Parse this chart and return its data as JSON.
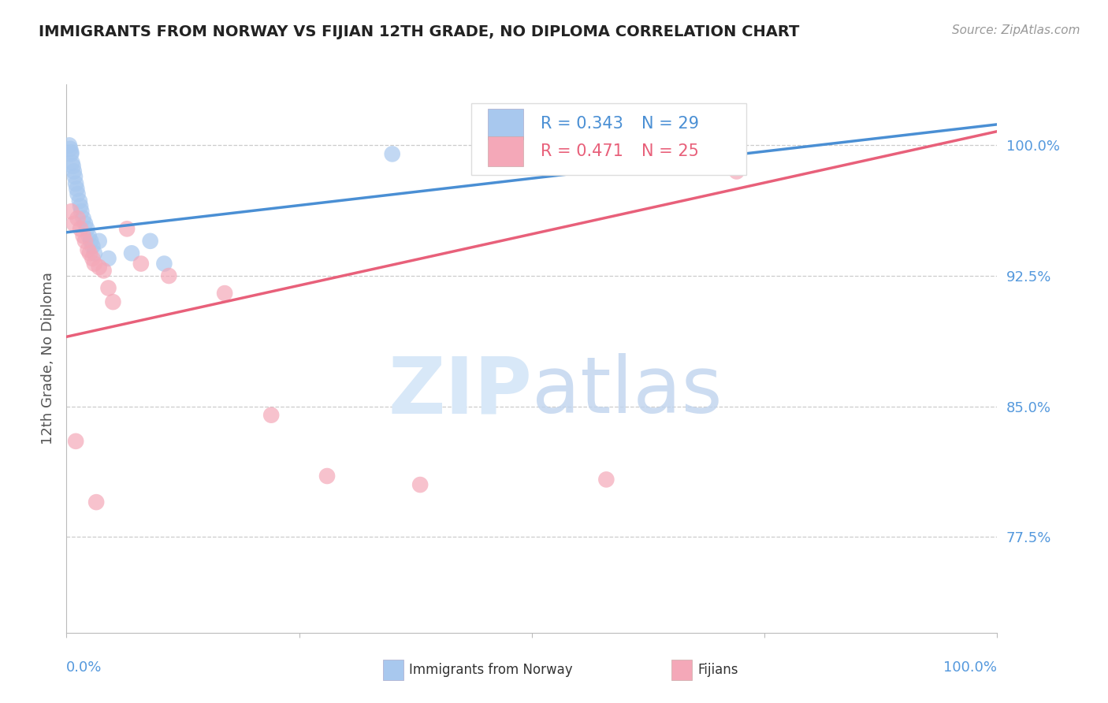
{
  "title": "IMMIGRANTS FROM NORWAY VS FIJIAN 12TH GRADE, NO DIPLOMA CORRELATION CHART",
  "source": "Source: ZipAtlas.com",
  "ylabel": "12th Grade, No Diploma",
  "yticks": [
    77.5,
    85.0,
    92.5,
    100.0
  ],
  "ytick_labels": [
    "77.5%",
    "85.0%",
    "92.5%",
    "100.0%"
  ],
  "xlim": [
    0.0,
    100.0
  ],
  "ylim": [
    72.0,
    103.5
  ],
  "blue_color": "#A8C8EE",
  "pink_color": "#F4A8B8",
  "blue_line_color": "#4A8FD4",
  "pink_line_color": "#E8607A",
  "legend_r_blue": "R = 0.343",
  "legend_n_blue": "N = 29",
  "legend_r_pink": "R = 0.471",
  "legend_n_pink": "N = 25",
  "legend_label_blue": "Immigrants from Norway",
  "legend_label_pink": "Fijians",
  "norway_x": [
    0.3,
    0.4,
    0.5,
    0.5,
    0.6,
    0.7,
    0.8,
    0.9,
    1.0,
    1.1,
    1.2,
    1.4,
    1.5,
    1.6,
    1.8,
    2.0,
    2.2,
    2.4,
    2.6,
    2.8,
    3.0,
    3.5,
    4.5,
    7.0,
    9.0,
    10.5,
    35.0,
    55.0,
    62.0
  ],
  "norway_y": [
    100.0,
    99.8,
    99.5,
    99.6,
    99.0,
    98.8,
    98.5,
    98.2,
    97.8,
    97.5,
    97.2,
    96.8,
    96.5,
    96.2,
    95.8,
    95.5,
    95.2,
    94.8,
    94.5,
    94.2,
    93.8,
    94.5,
    93.5,
    93.8,
    94.5,
    93.2,
    99.5,
    99.8,
    100.0
  ],
  "fijian_x": [
    0.5,
    0.8,
    1.2,
    1.5,
    1.8,
    2.0,
    2.3,
    2.5,
    2.8,
    3.0,
    3.5,
    4.0,
    4.5,
    5.0,
    6.5,
    8.0,
    11.0,
    17.0,
    22.0,
    28.0,
    38.0,
    58.0,
    72.0,
    1.0,
    3.2
  ],
  "fijian_y": [
    96.2,
    95.5,
    95.8,
    95.2,
    94.8,
    94.5,
    94.0,
    93.8,
    93.5,
    93.2,
    93.0,
    92.8,
    91.8,
    91.0,
    95.2,
    93.2,
    92.5,
    91.5,
    84.5,
    81.0,
    80.5,
    80.8,
    98.5,
    83.0,
    79.5
  ],
  "norway_trend_x0": 0.0,
  "norway_trend_y0": 95.0,
  "norway_trend_x1": 100.0,
  "norway_trend_y1": 101.2,
  "fijian_trend_x0": 0.0,
  "fijian_trend_y0": 89.0,
  "fijian_trend_x1": 100.0,
  "fijian_trend_y1": 100.8
}
